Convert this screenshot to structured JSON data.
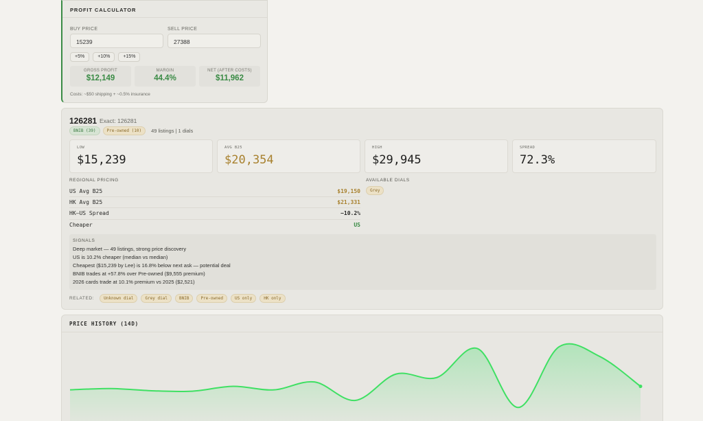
{
  "calculator": {
    "title": "PROFIT CALCULATOR",
    "buy_label": "BUY PRICE",
    "buy_value": "15239",
    "sell_label": "SELL PRICE",
    "sell_value": "27388",
    "pct_buttons": [
      "+5%",
      "+10%",
      "+15%"
    ],
    "stats": [
      {
        "label": "GROSS PROFIT",
        "value": "$12,149"
      },
      {
        "label": "MARGIN",
        "value": "44.4%"
      },
      {
        "label": "NET (AFTER COSTS)",
        "value": "$11,962"
      }
    ],
    "note": "Costs: ~$50 shipping + ~0.5% insurance"
  },
  "detail": {
    "ref": "126281",
    "exact": "Exact: 126281",
    "tag_bnib": "BNIB (39)",
    "tag_preowned": "Pre-owned (10)",
    "listing_count": "49 listings | 1 dials",
    "kpis": [
      {
        "label": "LOW",
        "value": "$15,239"
      },
      {
        "label": "AVG B25",
        "value": "$20,354"
      },
      {
        "label": "HIGH",
        "value": "$29,945"
      },
      {
        "label": "SPREAD",
        "value": "72.3%"
      }
    ],
    "regional_label": "REGIONAL PRICING",
    "regional": [
      {
        "label": "US Avg B25",
        "value": "$19,150"
      },
      {
        "label": "HK Avg B25",
        "value": "$21,331"
      },
      {
        "label": "HK–US Spread",
        "value": "−10.2%"
      },
      {
        "label": "Cheaper",
        "value": "US"
      }
    ],
    "dials_label": "AVAILABLE DIALS",
    "dials": [
      "Grey"
    ],
    "signals_label": "SIGNALS",
    "signals": [
      "Deep market — 49 listings, strong price discovery",
      "US is 10.2% cheaper (median vs median)",
      "Cheapest ($15,239 by Lee) is 16.8% below next ask — potential deal",
      "BNIB trades at +57.8% over Pre-owned ($9,555 premium)",
      "2026 cards trade at 10.1% premium vs 2025 ($2,521)"
    ],
    "related_label": "RELATED:",
    "related": [
      "Unknown dial",
      "Grey dial",
      "BNIB",
      "Pre-owned",
      "US only",
      "HK only"
    ]
  },
  "history": {
    "title": "PRICE HISTORY (14D)"
  },
  "colors": {
    "accent_green": "#3a8b45",
    "gold": "#a8812e",
    "line_green": "#3fe063"
  },
  "chart_data": {
    "type": "area",
    "title": "PRICE HISTORY (14D)",
    "series": [
      {
        "values": [
          0.56,
          0.545,
          0.57,
          0.575,
          0.52,
          0.56,
          0.47,
          0.68,
          0.38,
          0.42,
          0.09,
          0.76,
          0.07,
          0.18,
          0.52
        ]
      }
    ],
    "y_axis": "hidden",
    "grid": false,
    "note_units": "relative"
  }
}
